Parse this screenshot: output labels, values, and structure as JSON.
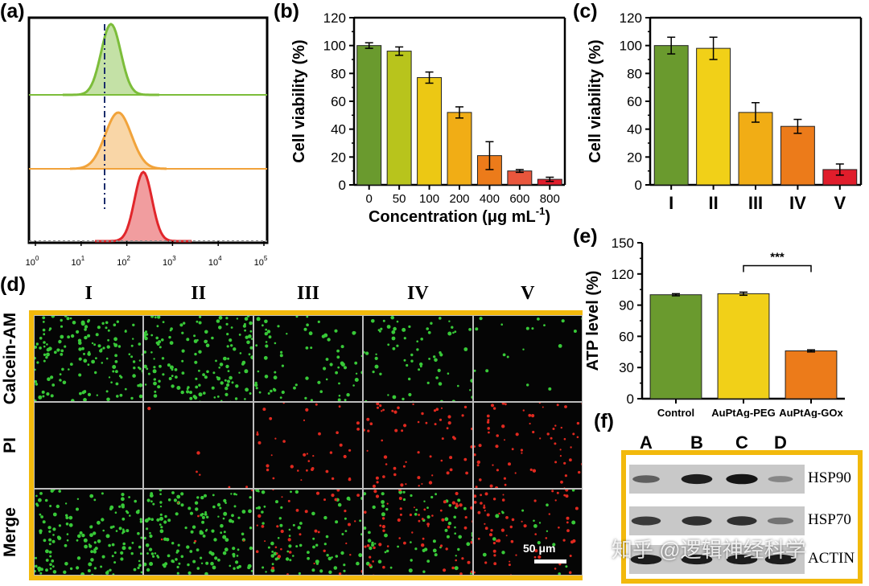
{
  "panels": {
    "a": "(a)",
    "b": "(b)",
    "c": "(c)",
    "d": "(d)",
    "e": "(e)",
    "f": "(f)"
  },
  "chart_data": [
    {
      "id": "a",
      "type": "area",
      "title": "",
      "xscale": "log",
      "xlim": [
        1,
        100000
      ],
      "tick_labels": [
        "10^0",
        "10^1",
        "10^2",
        "10^3",
        "10^4",
        "10^5"
      ],
      "series": [
        {
          "name": "top",
          "color": "#7cbd3a",
          "peak_x": 45
        },
        {
          "name": "middle",
          "color": "#f1a33b",
          "peak_x": 65
        },
        {
          "name": "bottom",
          "color": "#e1262b",
          "peak_x": 230
        }
      ],
      "reference_line_x": 40
    },
    {
      "id": "b",
      "type": "bar",
      "categories": [
        "0",
        "50",
        "100",
        "200",
        "400",
        "600",
        "800"
      ],
      "values": [
        100,
        96,
        77,
        52,
        21,
        10,
        4
      ],
      "errors": [
        2,
        3,
        4,
        4,
        10,
        1,
        1.5
      ],
      "colors": [
        "#6a9a2e",
        "#b8c41c",
        "#ecc814",
        "#f1ad15",
        "#ec7b1a",
        "#e9563c",
        "#e01d2b"
      ],
      "title": "",
      "xlabel": "Concentration (μg mL",
      "xlabel_sup": "-1",
      "xlabel_end": ")",
      "ylabel": "Cell viability (%)",
      "ylim": [
        0,
        120
      ],
      "yticks": [
        "0",
        "20",
        "40",
        "60",
        "80",
        "100",
        "120"
      ]
    },
    {
      "id": "c",
      "type": "bar",
      "categories": [
        "I",
        "II",
        "III",
        "IV",
        "V"
      ],
      "values": [
        100,
        98,
        52,
        42,
        11
      ],
      "errors": [
        6,
        8,
        7,
        5,
        4
      ],
      "colors": [
        "#6a9a2e",
        "#f1d018",
        "#f1ad15",
        "#ec7b1a",
        "#e01d2b"
      ],
      "title": "",
      "xlabel": "",
      "ylabel": "Cell viability (%)",
      "ylim": [
        0,
        120
      ],
      "yticks": [
        "0",
        "20",
        "40",
        "60",
        "80",
        "100",
        "120"
      ]
    },
    {
      "id": "e",
      "type": "bar",
      "categories": [
        "Control",
        "AuPtAg-PEG",
        "AuPtAg-GOx"
      ],
      "values": [
        100,
        101,
        46
      ],
      "errors": [
        1,
        1.5,
        1
      ],
      "colors": [
        "#6a9a2e",
        "#f1d018",
        "#ec7b1a"
      ],
      "title": "",
      "xlabel": "",
      "ylabel": "ATP level (%)",
      "ylim": [
        0,
        150
      ],
      "yticks": [
        "0",
        "30",
        "60",
        "90",
        "120",
        "150"
      ],
      "significance": "***"
    }
  ],
  "microscopy": {
    "columns": [
      "I",
      "II",
      "III",
      "IV",
      "V"
    ],
    "rows": [
      "Calcein-AM",
      "PI",
      "Merge"
    ],
    "scale_bar": "50 μm",
    "colors": {
      "green": "#38c938",
      "red": "#e0291f"
    },
    "green_density": [
      1.0,
      1.0,
      0.5,
      0.45,
      0.12
    ],
    "red_density": [
      0.0,
      0.05,
      0.35,
      0.55,
      0.6
    ]
  },
  "western_blot": {
    "lanes": [
      "A",
      "B",
      "C",
      "D"
    ],
    "proteins": [
      "HSP90",
      "HSP70",
      "ACTIN"
    ],
    "intensity": [
      [
        0.55,
        0.9,
        0.95,
        0.35
      ],
      [
        0.75,
        0.8,
        0.8,
        0.45
      ],
      [
        0.9,
        0.9,
        0.9,
        0.9
      ]
    ]
  },
  "watermark": "知乎 @逻辑神经科学"
}
